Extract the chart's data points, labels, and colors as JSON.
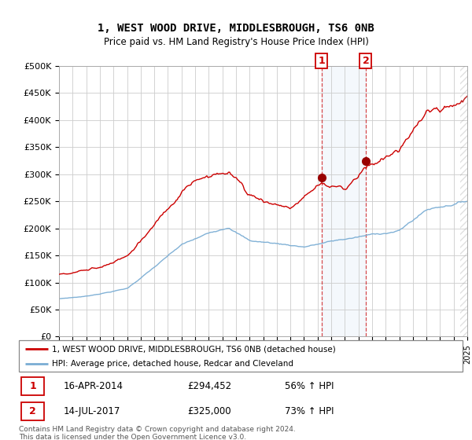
{
  "title": "1, WEST WOOD DRIVE, MIDDLESBROUGH, TS6 0NB",
  "subtitle": "Price paid vs. HM Land Registry's House Price Index (HPI)",
  "ylim": [
    0,
    500000
  ],
  "yticks": [
    0,
    50000,
    100000,
    150000,
    200000,
    250000,
    300000,
    350000,
    400000,
    450000,
    500000
  ],
  "ytick_labels": [
    "£0",
    "£50K",
    "£100K",
    "£150K",
    "£200K",
    "£250K",
    "£300K",
    "£350K",
    "£400K",
    "£450K",
    "£500K"
  ],
  "hpi_color": "#7aadd4",
  "price_color": "#cc0000",
  "marker_color": "#990000",
  "sale1_date": "16-APR-2014",
  "sale1_price": 294452,
  "sale1_label": "1",
  "sale1_pct": "56%",
  "sale2_date": "14-JUL-2017",
  "sale2_price": 325000,
  "sale2_label": "2",
  "sale2_pct": "73%",
  "legend_line1": "1, WEST WOOD DRIVE, MIDDLESBROUGH, TS6 0NB (detached house)",
  "legend_line2": "HPI: Average price, detached house, Redcar and Cleveland",
  "footnote": "Contains HM Land Registry data © Crown copyright and database right 2024.\nThis data is licensed under the Open Government Licence v3.0.",
  "background_color": "#ffffff",
  "grid_color": "#cccccc",
  "sale1_x": 2014.29,
  "sale2_x": 2017.54,
  "xmin": 1995,
  "xmax": 2025
}
